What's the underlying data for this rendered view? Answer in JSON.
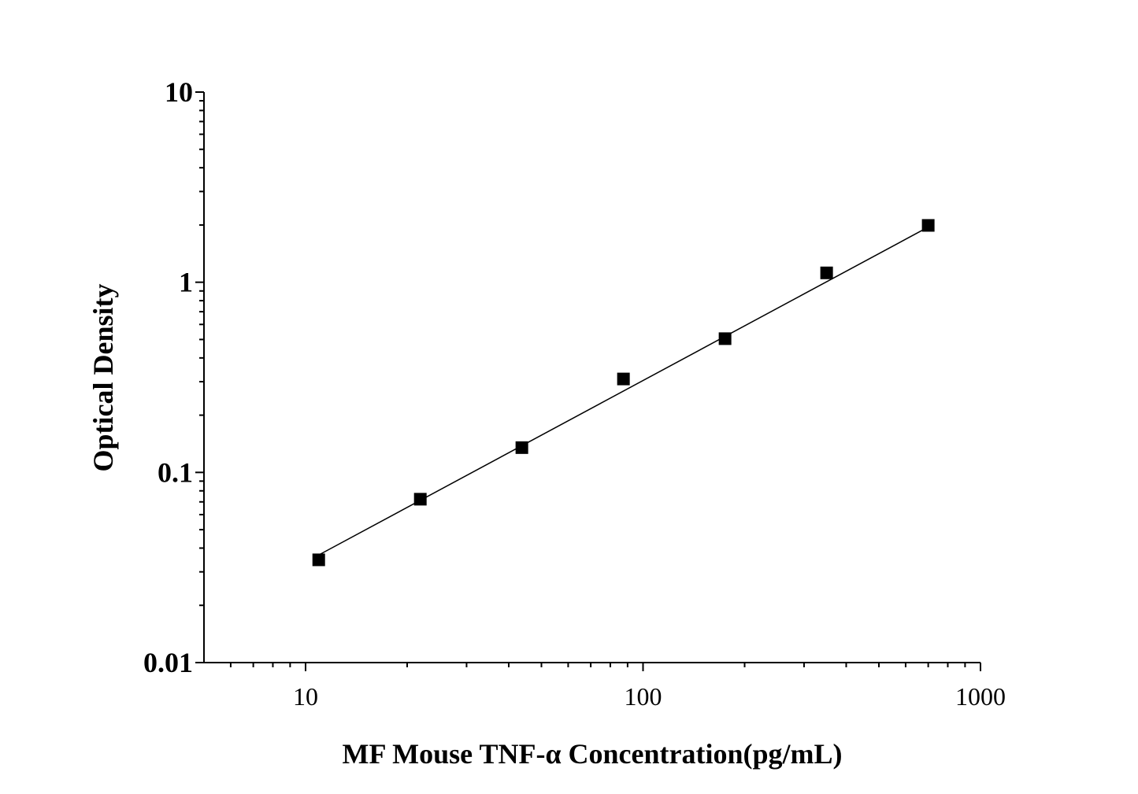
{
  "chart_data": {
    "type": "scatter",
    "x_label": "MF Mouse TNF-α Concentration(pg/mL)",
    "y_label": "Optical Density",
    "x_scale": "log",
    "y_scale": "log",
    "x": [
      10.94,
      21.88,
      43.75,
      87.5,
      175,
      350,
      700
    ],
    "values": [
      0.0347,
      0.0723,
      0.135,
      0.31,
      0.505,
      1.12,
      1.99
    ],
    "color": "#000000",
    "fit": {
      "x": [
        10.94,
        700
      ],
      "values": [
        0.0368,
        1.95
      ],
      "color": "#000000"
    },
    "xlim": [
      5,
      1000
    ],
    "ylim": [
      0.01,
      10
    ],
    "xticks": [
      10,
      100,
      1000
    ],
    "yticks": [
      0.01,
      0.1,
      1,
      10
    ],
    "xminorticks": [
      6,
      7,
      8,
      9,
      20,
      30,
      40,
      50,
      60,
      70,
      80,
      90,
      200,
      300,
      400,
      500,
      600,
      700,
      800,
      900
    ],
    "yminorticks": [
      0.02,
      0.03,
      0.04,
      0.05,
      0.06,
      0.07,
      0.08,
      0.09,
      0.2,
      0.3,
      0.4,
      0.5,
      0.6,
      0.7,
      0.8,
      0.9,
      2,
      3,
      4,
      5,
      6,
      7,
      8,
      9
    ]
  }
}
